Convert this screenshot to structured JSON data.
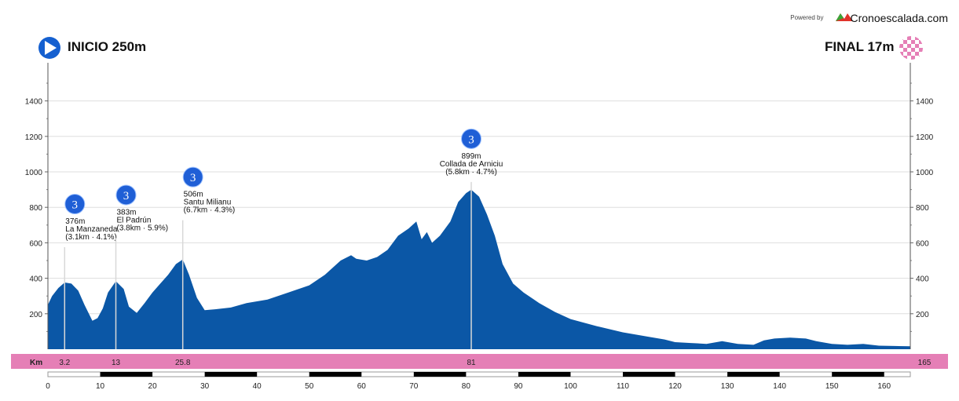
{
  "header": {
    "powered_label": "Powered by",
    "brand": "Cronoescalada.com",
    "start_label": "INICIO 250m",
    "end_label": "FINAL 17m"
  },
  "colors": {
    "profile_fill": "#0b57a6",
    "km_band": "#e57fb6",
    "badge": "#1f5fd6"
  },
  "chart_data": {
    "type": "area",
    "title": "",
    "xlabel": "",
    "ylabel": "",
    "xlim": [
      0,
      165
    ],
    "ylim": [
      0,
      1400
    ],
    "y_ticks": [
      200,
      400,
      600,
      800,
      1000,
      1200,
      1400
    ],
    "x_ticks": [
      0,
      10,
      20,
      30,
      40,
      50,
      60,
      70,
      80,
      90,
      100,
      110,
      120,
      130,
      140,
      150,
      160
    ],
    "grid": true,
    "km_band_label": "Km",
    "km_markers": [
      "3.2",
      "13",
      "25.8",
      "81",
      "165"
    ],
    "km_marker_values": [
      3.2,
      13,
      25.8,
      81,
      165
    ],
    "climbs": [
      {
        "km": 3.2,
        "category": "3",
        "altitude": "376m",
        "name": "La Manzaneda",
        "detail": "(3.1km · 4.1%)"
      },
      {
        "km": 13,
        "category": "3",
        "altitude": "383m",
        "name": "El Padrún",
        "detail": "(3.8km · 5.9%)"
      },
      {
        "km": 25.8,
        "category": "3",
        "altitude": "506m",
        "name": "Santu Milianu",
        "detail": "(6.7km · 4.3%)"
      },
      {
        "km": 81,
        "category": "3",
        "altitude": "899m",
        "name": "Collada de Arniciu",
        "detail": "(5.8km · 4.7%)"
      }
    ],
    "series": [
      {
        "x": [
          0,
          0.8,
          2,
          3.2,
          4.5,
          5.8,
          7,
          8.5,
          9.5,
          10.5,
          11.5,
          13,
          14.5,
          15.5,
          17,
          18.5,
          20,
          21.5,
          23,
          24.5,
          25.8,
          27,
          28.5,
          30,
          32,
          35,
          38,
          42,
          46,
          50,
          53,
          56,
          58,
          59,
          61,
          63,
          65,
          67,
          69,
          70.5,
          71.5,
          72.5,
          73.5,
          75,
          77,
          78.5,
          80,
          81,
          82.5,
          84,
          85.5,
          87,
          89,
          91,
          94,
          97,
          100,
          105,
          110,
          115,
          118,
          120,
          123,
          126,
          129,
          132,
          135,
          137,
          139,
          142,
          145,
          147,
          150,
          153,
          156,
          159,
          162,
          165
        ],
        "y": [
          250,
          300,
          345,
          376,
          370,
          330,
          250,
          160,
          175,
          230,
          320,
          383,
          340,
          240,
          205,
          260,
          320,
          370,
          420,
          480,
          506,
          420,
          290,
          220,
          225,
          235,
          260,
          280,
          320,
          360,
          420,
          500,
          530,
          510,
          500,
          520,
          560,
          640,
          680,
          720,
          620,
          660,
          600,
          640,
          720,
          830,
          880,
          899,
          860,
          760,
          640,
          480,
          370,
          320,
          260,
          210,
          170,
          130,
          95,
          70,
          55,
          40,
          35,
          30,
          45,
          30,
          25,
          50,
          60,
          65,
          60,
          45,
          30,
          25,
          30,
          20,
          18,
          17
        ]
      }
    ]
  }
}
